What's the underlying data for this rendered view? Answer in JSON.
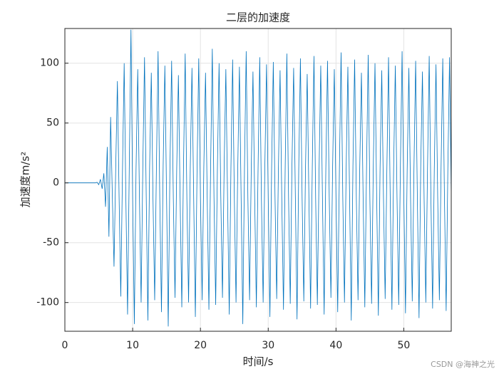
{
  "chart_data": {
    "type": "line",
    "title": "二层的加速度",
    "xlabel": "时间/s",
    "ylabel": "加速度m/s²",
    "watermark": "CSDN @海神之光",
    "color": "#0072bd",
    "grid": true,
    "xlim": [
      0,
      57
    ],
    "ylim": [
      -124,
      129
    ],
    "xticks": [
      0,
      10,
      20,
      30,
      40,
      50
    ],
    "yticks": [
      -100,
      -50,
      0,
      50,
      100
    ],
    "x": [
      0,
      0.25,
      0.5,
      0.75,
      1,
      1.25,
      1.5,
      1.75,
      2,
      2.25,
      2.5,
      2.75,
      3,
      3.25,
      3.5,
      3.75,
      4,
      4.25,
      4.5,
      4.75,
      5,
      5.25,
      5.5,
      5.75,
      6,
      6.25,
      6.5,
      6.75,
      7,
      7.25,
      7.5,
      7.75,
      8,
      8.25,
      8.5,
      8.75,
      9,
      9.25,
      9.5,
      9.75,
      10,
      10.25,
      10.5,
      10.75,
      11,
      11.25,
      11.5,
      11.75,
      12,
      12.25,
      12.5,
      12.75,
      13,
      13.25,
      13.5,
      13.75,
      14,
      14.25,
      14.5,
      14.75,
      15,
      15.25,
      15.5,
      15.75,
      16,
      16.25,
      16.5,
      16.75,
      17,
      17.25,
      17.5,
      17.75,
      18,
      18.25,
      18.5,
      18.75,
      19,
      19.25,
      19.5,
      19.75,
      20,
      20.25,
      20.5,
      20.75,
      21,
      21.25,
      21.5,
      21.75,
      22,
      22.25,
      22.5,
      22.75,
      23,
      23.25,
      23.5,
      23.75,
      24,
      24.25,
      24.5,
      24.75,
      25,
      25.25,
      25.5,
      25.75,
      26,
      26.25,
      26.5,
      26.75,
      27,
      27.25,
      27.5,
      27.75,
      28,
      28.25,
      28.5,
      28.75,
      29,
      29.25,
      29.5,
      29.75,
      30,
      30.25,
      30.5,
      30.75,
      31,
      31.25,
      31.5,
      31.75,
      32,
      32.25,
      32.5,
      32.75,
      33,
      33.25,
      33.5,
      33.75,
      34,
      34.25,
      34.5,
      34.75,
      35,
      35.25,
      35.5,
      35.75,
      36,
      36.25,
      36.5,
      36.75,
      37,
      37.25,
      37.5,
      37.75,
      38,
      38.25,
      38.5,
      38.75,
      39,
      39.25,
      39.5,
      39.75,
      40,
      40.25,
      40.5,
      40.75,
      41,
      41.25,
      41.5,
      41.75,
      42,
      42.25,
      42.5,
      42.75,
      43,
      43.25,
      43.5,
      43.75,
      44,
      44.25,
      44.5,
      44.75,
      45,
      45.25,
      45.5,
      45.75,
      46,
      46.25,
      46.5,
      46.75,
      47,
      47.25,
      47.5,
      47.75,
      48,
      48.25,
      48.5,
      48.75,
      49,
      49.25,
      49.5,
      49.75,
      50,
      50.25,
      50.5,
      50.75,
      51,
      51.25,
      51.5,
      51.75,
      52,
      52.25,
      52.5,
      52.75,
      53,
      53.25,
      53.5,
      53.75,
      54,
      54.25,
      54.5,
      54.75,
      55,
      55.25,
      55.5,
      55.75,
      56,
      56.25,
      56.5,
      56.75,
      57
    ],
    "values": [
      0,
      0,
      0,
      0,
      0,
      0,
      0,
      0,
      0,
      0,
      0,
      0,
      0,
      0,
      0,
      0,
      0,
      0,
      0,
      0.5,
      -1.5,
      3,
      -5,
      8,
      -20,
      30,
      -45,
      55,
      -10,
      -70,
      12,
      85,
      -12,
      -95,
      10,
      100,
      -14,
      -110,
      12,
      128,
      -13,
      -118,
      11,
      95,
      -12,
      -100,
      13,
      105,
      -11,
      -115,
      12,
      92,
      -13,
      -98,
      10,
      110,
      -12,
      -108,
      14,
      98,
      -10,
      -120,
      12,
      102,
      -13,
      -96,
      11,
      90,
      -12,
      -104,
      13,
      108,
      -14,
      -100,
      12,
      96,
      -11,
      -112,
      10,
      104,
      -12,
      -98,
      13,
      92,
      -13,
      -106,
      12,
      112,
      -12,
      -102,
      11,
      100,
      -10,
      -96,
      14,
      95,
      -13,
      -110,
      12,
      103,
      -12,
      -100,
      10,
      97,
      -11,
      -118,
      13,
      110,
      -13,
      -98,
      12,
      93,
      -12,
      -104,
      11,
      105,
      -14,
      -100,
      13,
      99,
      -12,
      -112,
      12,
      101,
      -11,
      -97,
      10,
      94,
      -13,
      -106,
      12,
      108,
      -12,
      -101,
      14,
      96,
      -10,
      -114,
      11,
      104,
      -13,
      -99,
      12,
      91,
      -12,
      -105,
      13,
      106,
      -14,
      -102,
      10,
      98,
      -12,
      -110,
      12,
      102,
      -11,
      -96,
      13,
      95,
      -13,
      -108,
      11,
      109,
      -12,
      -100,
      12,
      97,
      -10,
      -115,
      14,
      103,
      -13,
      -98,
      12,
      92,
      -12,
      -104,
      11,
      107,
      -14,
      -101,
      13,
      100,
      -12,
      -111,
      12,
      94,
      -11,
      -97,
      10,
      105,
      -13,
      -106,
      12,
      98,
      -12,
      -102,
      13,
      110,
      -10,
      -109,
      11,
      96,
      -13,
      -99,
      12,
      102,
      -12,
      -113,
      14,
      93,
      -14,
      -100,
      12,
      106,
      -12,
      -105,
      11,
      99,
      -11,
      -98,
      13,
      104,
      -13,
      -107,
      12,
      105,
      -12
    ]
  }
}
